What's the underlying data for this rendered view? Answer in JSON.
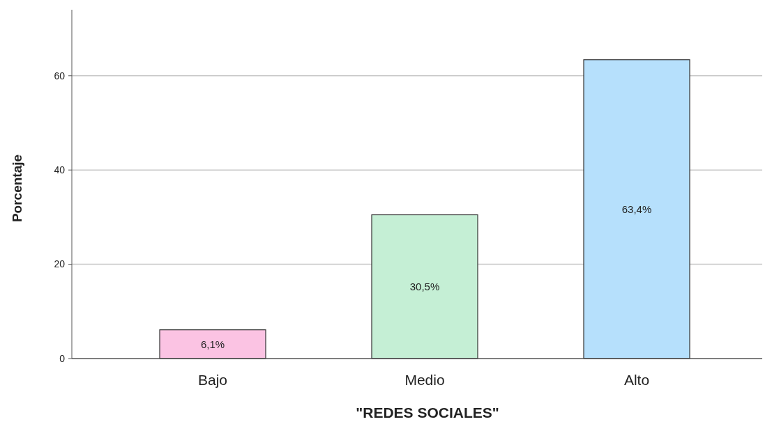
{
  "chart_data": {
    "type": "bar",
    "xlabel": "\"REDES SOCIALES\"",
    "ylabel": "Porcentaje",
    "categories": [
      "Bajo",
      "Medio",
      "Alto"
    ],
    "values": [
      6.1,
      30.5,
      63.4
    ],
    "colors": [
      "#fbc3e3",
      "#c5efd5",
      "#b6e0fc"
    ],
    "value_labels": [
      "6,1%",
      "30,5%",
      "63,4%"
    ],
    "ylim": [
      0,
      74
    ],
    "yticks": [
      0,
      20,
      40,
      60
    ],
    "grid": "y"
  }
}
